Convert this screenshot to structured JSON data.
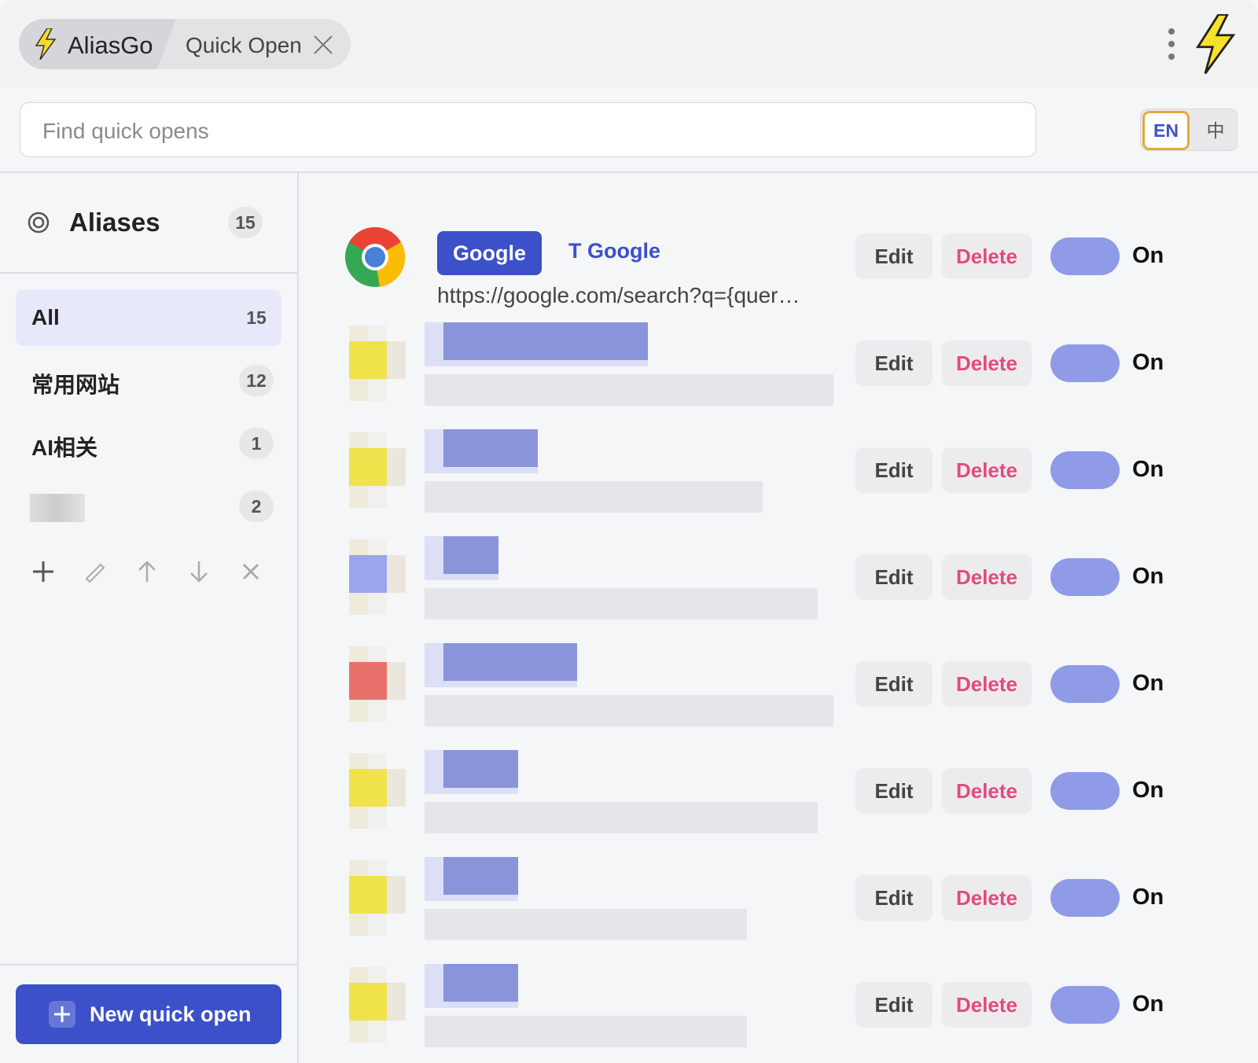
{
  "header": {
    "app_name": "AliasGo",
    "tab": "Quick Open"
  },
  "search": {
    "placeholder": "Find quick opens"
  },
  "language": {
    "english": "EN",
    "chinese": "中"
  },
  "sidebar": {
    "title": "Aliases",
    "count": 15,
    "groups": [
      {
        "name": "All",
        "count": 15
      },
      {
        "name": "常用网站",
        "count": 12
      },
      {
        "name": "AI相关",
        "count": 1
      },
      {
        "count": 2
      }
    ],
    "new_button": "New quick open"
  },
  "actions": {
    "edit": "Edit",
    "delete": "Delete"
  },
  "items": [
    {
      "alias": "Google",
      "name": "T Google",
      "url": "https://google.com/search?q={quer…",
      "status": "On"
    },
    {
      "status": "On"
    },
    {
      "status": "On"
    },
    {
      "status": "On"
    },
    {
      "status": "On"
    },
    {
      "status": "On"
    },
    {
      "status": "On"
    },
    {
      "status": "On"
    }
  ]
}
